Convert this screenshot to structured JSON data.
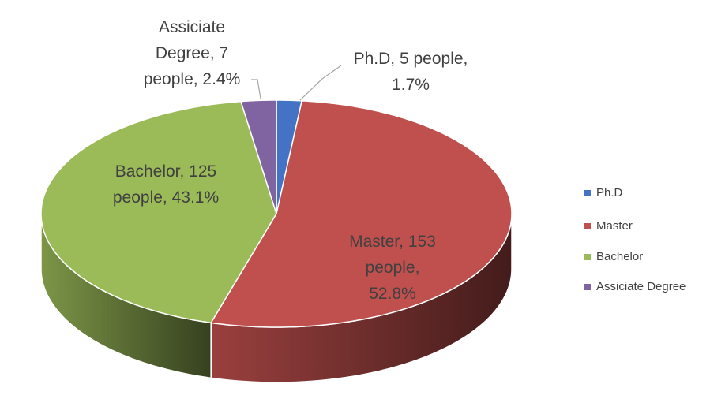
{
  "chart_data": {
    "type": "pie",
    "three_d": true,
    "categories": [
      "Ph.D",
      "Master",
      "Bachelor",
      "Assiciate Degree"
    ],
    "values": [
      5,
      153,
      125,
      7
    ],
    "value_labels": [
      "Ph.D, 5 people, 1.7%",
      "Master, 153 people, 52.8%",
      "Bachelor, 125 people, 43.1%",
      "Assiciate Degree, 7 people, 2.4%"
    ],
    "colors": [
      "#4472c4",
      "#c0504d",
      "#9bbb59",
      "#8064a2"
    ],
    "legend": "right"
  }
}
